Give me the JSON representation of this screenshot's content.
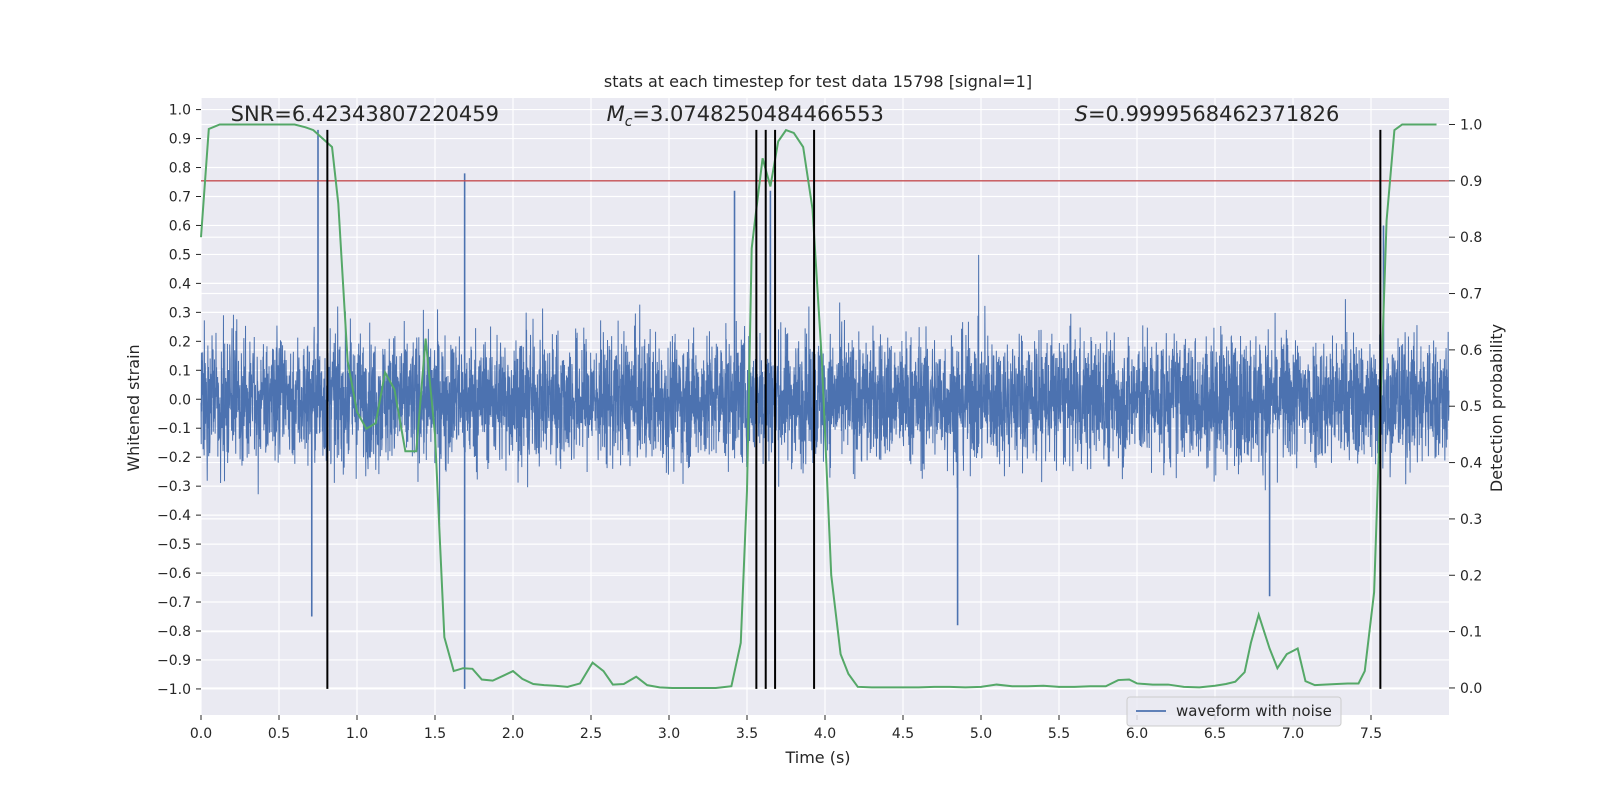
{
  "chart_data": {
    "type": "line",
    "title": "stats at each timestep for test data 15798 [signal=1]",
    "xlabel": "Time (s)",
    "ylabel_left": "Whitened strain",
    "ylabel_right": "Detection probability",
    "xlim": [
      0.0,
      8.0
    ],
    "ylim_left": [
      -1.09,
      1.04
    ],
    "ylim_right": [
      -0.048,
      1.047
    ],
    "x_ticks": [
      "0.0",
      "0.5",
      "1.0",
      "1.5",
      "2.0",
      "2.5",
      "3.0",
      "3.5",
      "4.0",
      "4.5",
      "5.0",
      "5.5",
      "6.0",
      "6.5",
      "7.0",
      "7.5"
    ],
    "y_ticks_left": [
      "1.0",
      "0.9",
      "0.8",
      "0.7",
      "0.6",
      "0.5",
      "0.4",
      "0.3",
      "0.2",
      "0.1",
      "0.0",
      "−0.1",
      "−0.2",
      "−0.3",
      "−0.4",
      "−0.5",
      "−0.6",
      "−0.7",
      "−0.8",
      "−0.9",
      "−1.0"
    ],
    "y_ticks_right": [
      "1.0",
      "0.9",
      "0.8",
      "0.7",
      "0.6",
      "0.5",
      "0.4",
      "0.3",
      "0.2",
      "0.1",
      "0.0"
    ],
    "grid": true,
    "legend_position": "bottom-right",
    "series": [
      {
        "name": "waveform with noise",
        "axis": "left",
        "color": "#4c72b0",
        "kind": "noisy strain",
        "typical_range": [
          -0.42,
          0.42
        ],
        "peaks": [
          {
            "x": 0.75,
            "y": 0.93
          },
          {
            "x": 0.71,
            "y": -0.75
          },
          {
            "x": 1.69,
            "y": -1.0
          },
          {
            "x": 1.69,
            "y": 0.78
          },
          {
            "x": 3.42,
            "y": 0.72
          },
          {
            "x": 3.65,
            "y": 0.72
          },
          {
            "x": 4.85,
            "y": -0.78
          },
          {
            "x": 6.85,
            "y": -0.68
          },
          {
            "x": 7.58,
            "y": 0.6
          }
        ]
      },
      {
        "axis": "right",
        "color": "#55a868",
        "x": [
          0.0,
          0.05,
          0.12,
          0.2,
          0.3,
          0.4,
          0.5,
          0.6,
          0.67,
          0.72,
          0.76,
          0.8,
          0.84,
          0.88,
          0.94,
          1.0,
          1.06,
          1.12,
          1.18,
          1.24,
          1.31,
          1.38,
          1.44,
          1.5,
          1.56,
          1.62,
          1.68,
          1.74,
          1.8,
          1.87,
          1.94,
          2.0,
          2.06,
          2.13,
          2.2,
          2.27,
          2.35,
          2.43,
          2.51,
          2.58,
          2.64,
          2.71,
          2.79,
          2.86,
          2.94,
          3.02,
          3.1,
          3.2,
          3.3,
          3.4,
          3.46,
          3.5,
          3.53,
          3.56,
          3.6,
          3.65,
          3.7,
          3.75,
          3.8,
          3.86,
          3.92,
          3.98,
          4.04,
          4.1,
          4.15,
          4.21,
          4.3,
          4.4,
          4.5,
          4.6,
          4.7,
          4.8,
          4.9,
          5.0,
          5.1,
          5.2,
          5.3,
          5.4,
          5.5,
          5.6,
          5.7,
          5.8,
          5.88,
          5.95,
          6.0,
          6.1,
          6.2,
          6.3,
          6.4,
          6.5,
          6.57,
          6.63,
          6.69,
          6.73,
          6.78,
          6.85,
          6.9,
          6.96,
          7.03,
          7.08,
          7.14,
          7.2,
          7.28,
          7.35,
          7.42,
          7.46,
          7.52,
          7.56,
          7.6,
          7.65,
          7.7,
          7.8,
          7.92
        ],
        "y": [
          0.8,
          0.992,
          1.0,
          1.0,
          1.0,
          1.0,
          1.0,
          1.0,
          0.995,
          0.99,
          0.98,
          0.97,
          0.96,
          0.86,
          0.58,
          0.49,
          0.46,
          0.47,
          0.56,
          0.53,
          0.42,
          0.42,
          0.62,
          0.45,
          0.09,
          0.03,
          0.035,
          0.034,
          0.015,
          0.013,
          0.022,
          0.03,
          0.016,
          0.007,
          0.005,
          0.004,
          0.002,
          0.008,
          0.045,
          0.03,
          0.006,
          0.007,
          0.02,
          0.005,
          0.001,
          0.0,
          0.0,
          0.0,
          0.0,
          0.003,
          0.08,
          0.35,
          0.78,
          0.85,
          0.94,
          0.89,
          0.97,
          0.99,
          0.985,
          0.96,
          0.85,
          0.58,
          0.2,
          0.06,
          0.025,
          0.002,
          0.001,
          0.001,
          0.001,
          0.001,
          0.002,
          0.002,
          0.001,
          0.002,
          0.006,
          0.003,
          0.003,
          0.004,
          0.002,
          0.002,
          0.003,
          0.003,
          0.014,
          0.015,
          0.008,
          0.006,
          0.006,
          0.002,
          0.001,
          0.004,
          0.007,
          0.011,
          0.028,
          0.08,
          0.13,
          0.07,
          0.035,
          0.06,
          0.07,
          0.012,
          0.005,
          0.006,
          0.007,
          0.008,
          0.008,
          0.03,
          0.17,
          0.5,
          0.83,
          0.99,
          1.0,
          1.0,
          1.0
        ]
      }
    ],
    "threshold_line": {
      "axis": "right",
      "y": 0.9,
      "color": "#c44e52"
    },
    "event_lines": {
      "x": [
        0.81,
        3.56,
        3.62,
        3.68,
        3.93,
        7.56
      ],
      "y_range": [
        -1.0,
        0.93
      ],
      "color": "#000000"
    },
    "annotations": [
      {
        "text": "SNR=6.42343807220459",
        "x": 0.19,
        "y": 0.985
      },
      {
        "text_italic": "M",
        "text_sub": "c",
        "text": "=3.0748250484466553",
        "x": 2.6,
        "y": 0.985
      },
      {
        "text_italic": "S",
        "text": "=0.9999568462371826",
        "x": 5.6,
        "y": 0.985
      }
    ]
  }
}
